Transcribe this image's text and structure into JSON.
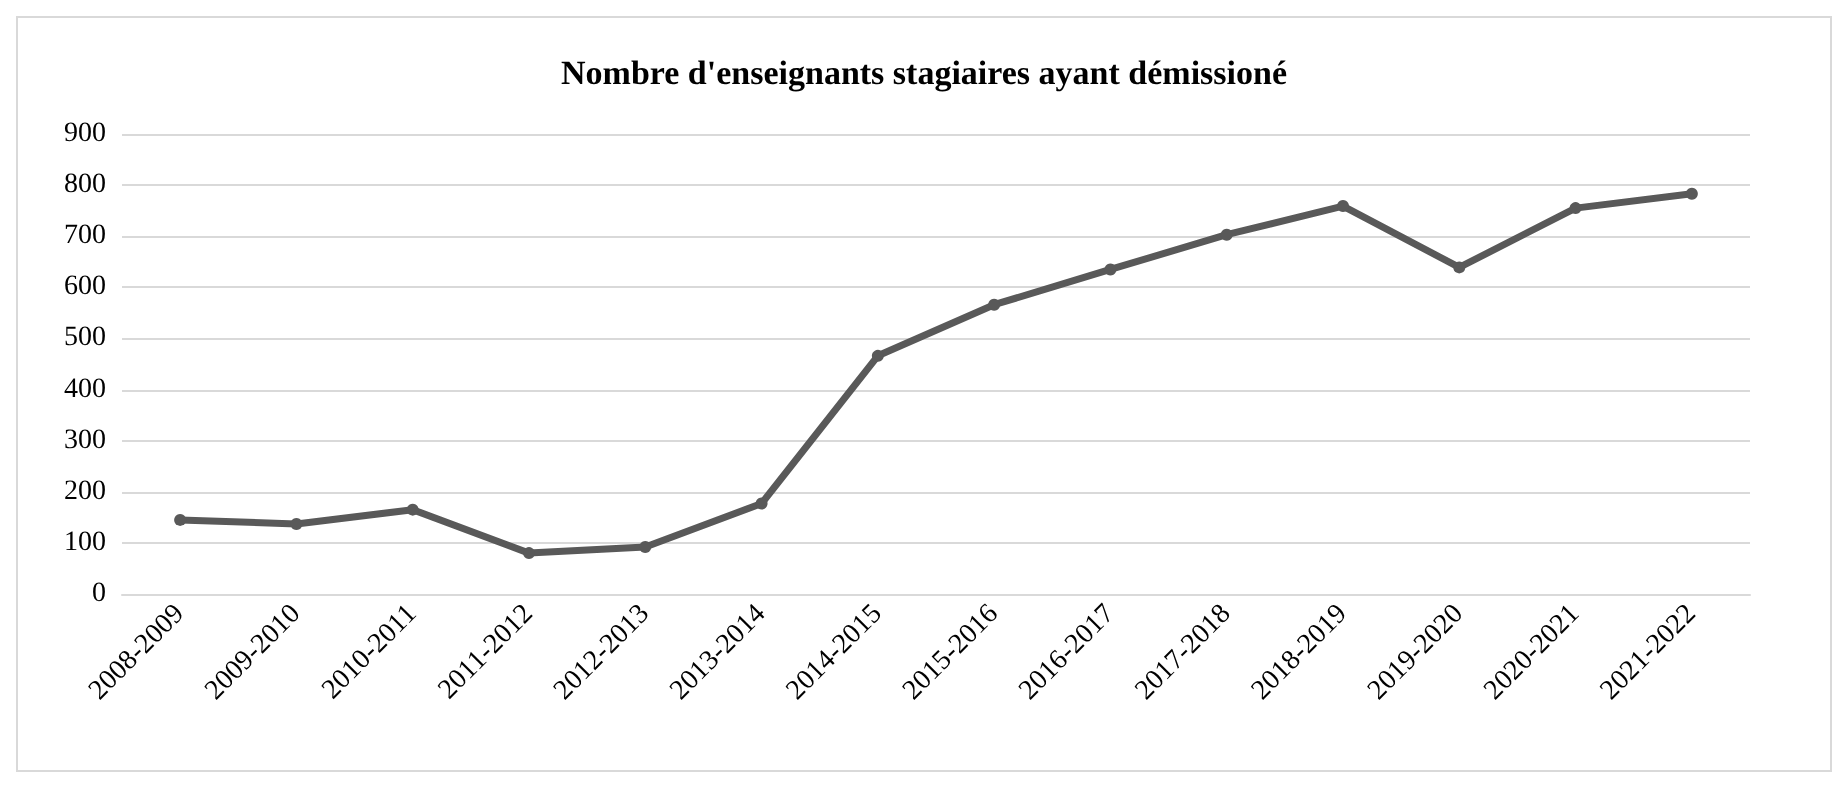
{
  "chart_data": {
    "type": "line",
    "title": "Nombre d'enseignants stagiaires ayant démissioné",
    "categories": [
      "2008-2009",
      "2009-2010",
      "2010-2011",
      "2011-2012",
      "2012-2013",
      "2013-2014",
      "2014-2015",
      "2015-2016",
      "2016-2017",
      "2017-2018",
      "2018-2019",
      "2019-2020",
      "2020-2021",
      "2021-2022"
    ],
    "series": [
      {
        "color": "#595959",
        "values": [
          145,
          137,
          165,
          80,
          92,
          177,
          466,
          566,
          635,
          703,
          759,
          639,
          755,
          783
        ]
      }
    ],
    "ylim": [
      0,
      900
    ],
    "yticks": [
      0,
      100,
      200,
      300,
      400,
      500,
      600,
      700,
      800,
      900
    ],
    "grid": "y",
    "marker": "circle",
    "line_style": "solid"
  }
}
